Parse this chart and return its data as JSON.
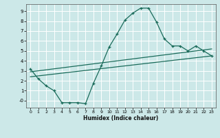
{
  "xlabel": "Humidex (Indice chaleur)",
  "bg_color": "#cce8e8",
  "grid_color": "#ffffff",
  "line_color": "#1a6b5a",
  "xlim": [
    -0.5,
    23.5
  ],
  "ylim": [
    -0.7,
    9.7
  ],
  "xticks": [
    0,
    1,
    2,
    3,
    4,
    5,
    6,
    7,
    8,
    9,
    10,
    11,
    12,
    13,
    14,
    15,
    16,
    17,
    18,
    19,
    20,
    21,
    22,
    23
  ],
  "yticks": [
    0,
    1,
    2,
    3,
    4,
    5,
    6,
    7,
    8,
    9
  ],
  "ytick_labels": [
    "-0",
    "1",
    "2",
    "3",
    "4",
    "5",
    "6",
    "7",
    "8",
    "9"
  ],
  "main_x": [
    0,
    1,
    2,
    3,
    4,
    5,
    6,
    7,
    8,
    9,
    10,
    11,
    12,
    13,
    14,
    15,
    16,
    17,
    18,
    19,
    20,
    21,
    22,
    23
  ],
  "main_y": [
    3.2,
    2.2,
    1.5,
    1.0,
    -0.2,
    -0.2,
    -0.2,
    -0.3,
    1.75,
    3.5,
    5.4,
    6.7,
    8.1,
    8.8,
    9.3,
    9.3,
    7.9,
    6.2,
    5.5,
    5.5,
    5.0,
    5.5,
    5.0,
    4.5
  ],
  "trend1_x": [
    0,
    23
  ],
  "trend1_y": [
    2.9,
    5.2
  ],
  "trend2_x": [
    0,
    23
  ],
  "trend2_y": [
    2.4,
    4.5
  ],
  "marker_size": 3,
  "linewidth": 0.9
}
